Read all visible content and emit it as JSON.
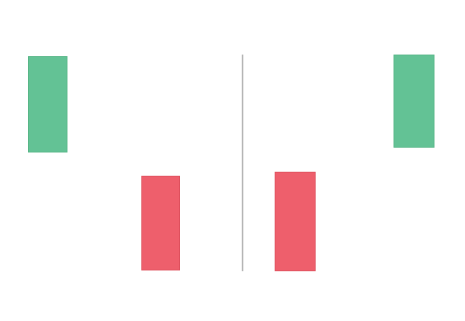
{
  "colors": {
    "background": "#ffffff",
    "divider": "#b5b5b5",
    "green_fill": "#63c295",
    "green_border": "#55b585",
    "red_fill": "#ee5f6c",
    "red_border": "#de4f5c"
  },
  "blocks": [
    {
      "id": "b1",
      "tone": "green"
    },
    {
      "id": "b2",
      "tone": "red"
    },
    {
      "id": "b3",
      "tone": "red"
    },
    {
      "id": "b4",
      "tone": "green"
    }
  ]
}
